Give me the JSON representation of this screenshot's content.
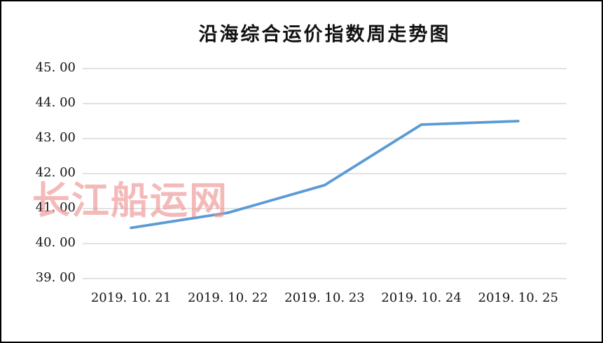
{
  "page": {
    "background": "#ffffff",
    "frame_border_color": "#000000"
  },
  "chart_data": {
    "type": "line",
    "title": "沿海综合运价指数周走势图",
    "categories": [
      "2019.10.21",
      "2019.10.22",
      "2019.10.23",
      "2019.10.24",
      "2019.10.25"
    ],
    "values": [
      40.45,
      40.88,
      41.67,
      43.4,
      43.5
    ],
    "series_name": "沿海综合运价指数",
    "xlabel": "",
    "ylabel": "",
    "ylim": [
      39,
      45
    ],
    "ytick_step": 1,
    "ytick_labels": [
      "45. 00",
      "44. 00",
      "43. 00",
      "42. 00",
      "41. 00",
      "40. 00",
      "39. 00"
    ],
    "xtick_labels": [
      "2019. 10. 21",
      "2019. 10. 22",
      "2019. 10. 23",
      "2019. 10. 24",
      "2019. 10. 25"
    ],
    "grid": true,
    "legend": "none",
    "line_color": "#5b9bd5",
    "gridline_color": "#d9d9d9",
    "text_color": "#141414"
  },
  "watermark": {
    "text": "长江船运网",
    "color": "#ee8f8f"
  }
}
